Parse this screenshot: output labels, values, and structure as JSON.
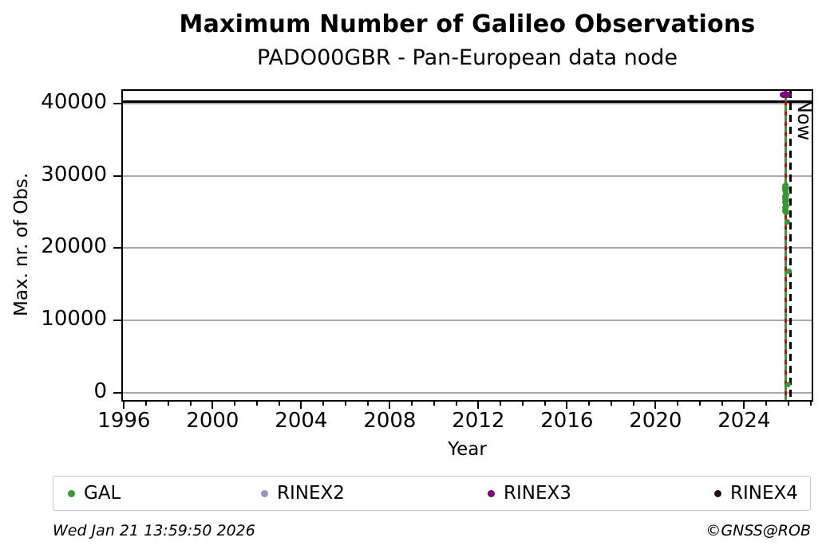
{
  "footer": {
    "timestamp": "Wed Jan 21 13:59:50 2026",
    "credit": "©GNSS@ROB"
  },
  "colors": {
    "gal": "#349934",
    "rinex2": "#9593c8",
    "rinex3": "#800080",
    "rinex4": "#260d26",
    "event_line": "#dd0000",
    "now_line": "#000000",
    "max_line": "#000000",
    "grid": "#a9a9a9",
    "axis": "#000000"
  },
  "legend": {
    "items": [
      {
        "label": "GAL",
        "color_key": "gal"
      },
      {
        "label": "RINEX2",
        "color_key": "rinex2"
      },
      {
        "label": "RINEX3",
        "color_key": "rinex3"
      },
      {
        "label": "RINEX4",
        "color_key": "rinex4"
      }
    ]
  },
  "chart_data": {
    "type": "scatter",
    "title": "Maximum Number of Galileo Observations",
    "subtitle": "PADO00GBR - Pan-European data node",
    "xlabel": "Year",
    "ylabel": "Max. nr. of Obs.",
    "xlim": [
      1995.95,
      2027.05
    ],
    "ylim": [
      -1000,
      41750
    ],
    "xticks_major": [
      1996,
      2000,
      2004,
      2008,
      2012,
      2016,
      2020,
      2024
    ],
    "xtick_minor_step": 1,
    "yticks": [
      0,
      10000,
      20000,
      30000,
      40000
    ],
    "grid": "horizontal-only",
    "legend_position": "bottom",
    "hlines": [
      {
        "y": 40300,
        "color_key": "max_line",
        "style": "solid",
        "name": "max-observations-line"
      }
    ],
    "vlines": [
      {
        "x": 2025.88,
        "color_key": "gal",
        "style": "solid",
        "name": "gal-data-line"
      },
      {
        "x": 2025.88,
        "color_key": "event_line",
        "style": "dashed",
        "name": "event-line"
      },
      {
        "x": 2026.11,
        "color_key": "now_line",
        "style": "dashed",
        "name": "now-line",
        "label": "Now"
      }
    ],
    "series": [
      {
        "name": "GAL",
        "color_key": "gal",
        "points": [
          [
            2025.84,
            28600
          ],
          [
            2025.88,
            28700
          ],
          [
            2025.86,
            28400
          ],
          [
            2025.9,
            28200
          ],
          [
            2025.85,
            28000
          ],
          [
            2025.89,
            27800
          ],
          [
            2025.87,
            27600
          ],
          [
            2025.91,
            27400
          ],
          [
            2025.85,
            27200
          ],
          [
            2025.88,
            27000
          ],
          [
            2025.86,
            26800
          ],
          [
            2025.9,
            26600
          ],
          [
            2025.84,
            26400
          ],
          [
            2025.88,
            26200
          ],
          [
            2025.87,
            26000
          ],
          [
            2025.91,
            25800
          ],
          [
            2025.85,
            25600
          ],
          [
            2025.89,
            25400
          ],
          [
            2025.86,
            25200
          ],
          [
            2025.9,
            25000
          ],
          [
            2025.87,
            24900
          ],
          [
            2025.95,
            23600
          ],
          [
            2026.04,
            16800
          ],
          [
            2025.97,
            1100
          ]
        ]
      },
      {
        "name": "RINEX2",
        "color_key": "rinex2",
        "points": []
      },
      {
        "name": "RINEX3",
        "color_key": "rinex3",
        "points": [
          [
            2025.78,
            41150
          ],
          [
            2025.86,
            41200
          ],
          [
            2025.93,
            41150
          ]
        ]
      },
      {
        "name": "RINEX4",
        "color_key": "rinex4",
        "points": []
      }
    ]
  }
}
